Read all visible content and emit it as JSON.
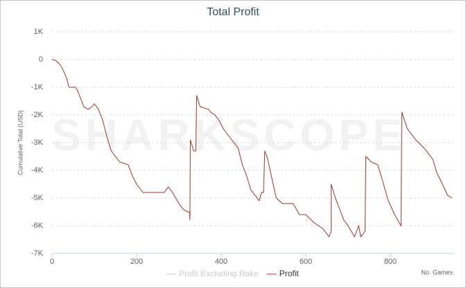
{
  "chart_data": {
    "type": "line",
    "title": "Total Profit",
    "watermark": "SHARKSCOPE",
    "y_label": "Cumulative Total (USD)",
    "x_label": "No. Games",
    "xlim": [
      0,
      950
    ],
    "xticks": [
      0,
      200,
      400,
      600,
      800
    ],
    "ylim": [
      -7000,
      1000
    ],
    "yticks": [
      {
        "value": 1000,
        "label": "1K"
      },
      0,
      {
        "value": -1000,
        "label": "-1K"
      },
      {
        "value": -2000,
        "label": "-2K"
      },
      {
        "value": -3000,
        "label": "-3K"
      },
      {
        "value": -4000,
        "label": "-4K"
      },
      {
        "value": -5000,
        "label": "-5K"
      },
      {
        "value": -6000,
        "label": "-6K"
      },
      {
        "value": -7000,
        "label": "-7K"
      }
    ],
    "grid": true,
    "hidden_series": [
      {
        "name": "Profit Excluding Rake",
        "color": "#cccccc"
      }
    ],
    "x": [
      0,
      10,
      20,
      30,
      35,
      40,
      55,
      60,
      65,
      75,
      85,
      95,
      100,
      110,
      120,
      130,
      140,
      150,
      160,
      180,
      190,
      200,
      210,
      215,
      250,
      265,
      275,
      285,
      300,
      310,
      320,
      325,
      326,
      327,
      335,
      340,
      342,
      350,
      370,
      375,
      385,
      395,
      405,
      415,
      430,
      440,
      450,
      460,
      470,
      480,
      490,
      495,
      500,
      503,
      510,
      520,
      530,
      545,
      570,
      585,
      600,
      620,
      640,
      655,
      660,
      660,
      670,
      680,
      690,
      700,
      715,
      725,
      730,
      740,
      742,
      755,
      770,
      780,
      795,
      810,
      825,
      827,
      840,
      860,
      880,
      900,
      910,
      920,
      935,
      945
    ],
    "series": [
      {
        "name": "Profit",
        "color": "#a0332b",
        "values": [
          0,
          -50,
          -200,
          -500,
          -700,
          -1000,
          -1000,
          -1100,
          -1300,
          -1700,
          -1800,
          -1700,
          -1600,
          -1800,
          -2200,
          -2800,
          -3300,
          -3500,
          -3700,
          -3800,
          -4200,
          -4500,
          -4700,
          -4800,
          -4800,
          -4800,
          -4600,
          -4800,
          -5200,
          -5400,
          -5500,
          -5500,
          -5800,
          -2900,
          -3300,
          -3300,
          -1300,
          -1700,
          -1800,
          -1900,
          -2000,
          -2200,
          -2500,
          -2700,
          -3000,
          -3200,
          -3800,
          -4200,
          -4700,
          -4900,
          -5100,
          -4800,
          -4800,
          -3300,
          -3600,
          -4300,
          -5000,
          -5200,
          -5200,
          -5600,
          -5600,
          -5900,
          -6100,
          -6400,
          -6200,
          -4500,
          -5000,
          -5400,
          -5800,
          -6000,
          -6400,
          -6000,
          -6400,
          -6200,
          -3500,
          -3700,
          -3800,
          -4300,
          -5100,
          -5600,
          -6000,
          -1900,
          -2500,
          -2900,
          -3200,
          -3600,
          -4100,
          -4400,
          -4900,
          -5000
        ]
      }
    ]
  }
}
